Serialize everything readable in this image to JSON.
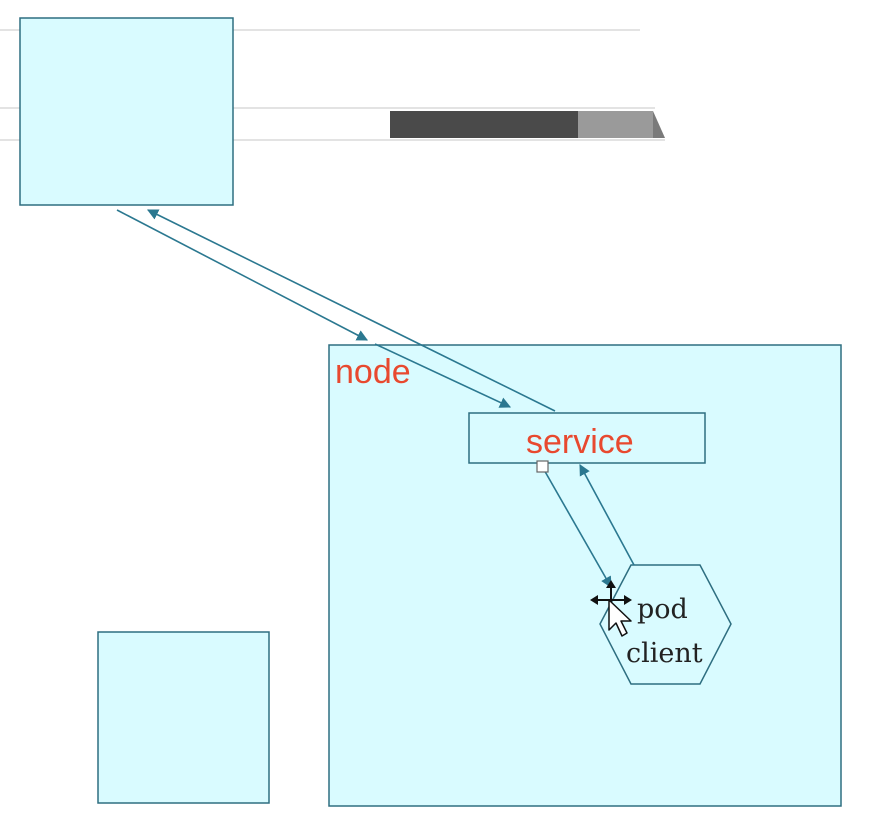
{
  "labels": {
    "node": "node",
    "service": "service",
    "pod": "pod",
    "client": "client"
  },
  "colors": {
    "box_fill": "#d9fbff",
    "box_stroke": "#2e6e80",
    "arrow": "#2b7890",
    "label_red": "#e8492f",
    "toolbar_dark": "#4a4a4a",
    "toolbar_light": "#9a9a9a",
    "guide_line": "#e3e3e3"
  },
  "icons": {
    "cursor": "move-cursor-icon",
    "handle": "selection-handle-icon"
  }
}
